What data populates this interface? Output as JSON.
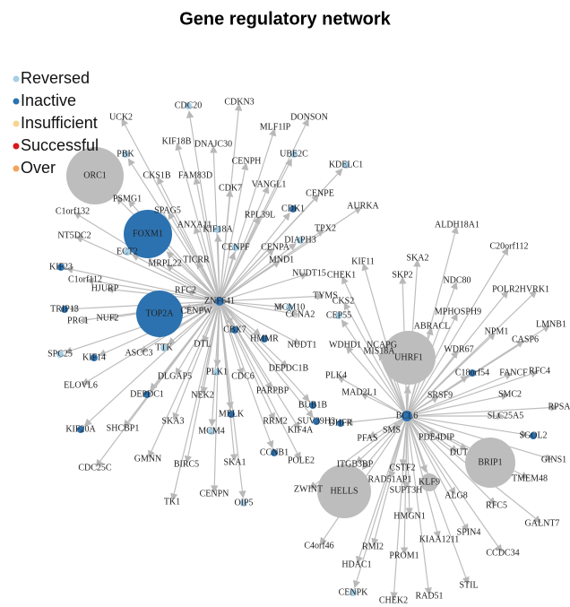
{
  "title": "Gene regulatory network",
  "legend": [
    {
      "label": "Reversed",
      "color": "#a6cfe6"
    },
    {
      "label": "Inactive",
      "color": "#2c72b0"
    },
    {
      "label": "Insufficient",
      "color": "#f7d58e"
    },
    {
      "label": "Successful",
      "color": "#d7191c"
    },
    {
      "label": "Over",
      "color": "#f4a35a"
    }
  ],
  "nodes": [
    {
      "label": "ZNF641",
      "status": "Inactive"
    },
    {
      "label": "BCL6",
      "status": "Inactive"
    },
    {
      "label": "ORC1",
      "from": "ZNF641"
    },
    {
      "label": "FOXM1",
      "from": "ZNF641",
      "status": "Inactive"
    },
    {
      "label": "TOP2A",
      "from": "ZNF641",
      "status": "Inactive"
    },
    {
      "label": "UCK2",
      "from": "ZNF641"
    },
    {
      "label": "CDC20",
      "from": "ZNF641",
      "status": "Reversed"
    },
    {
      "label": "CDKN3",
      "from": "ZNF641"
    },
    {
      "label": "MLF1IP",
      "from": "ZNF641"
    },
    {
      "label": "DONSON",
      "from": "ZNF641"
    },
    {
      "label": "KIF18B",
      "from": "ZNF641"
    },
    {
      "label": "DNAJC30",
      "from": "ZNF641"
    },
    {
      "label": "PBK",
      "from": "ZNF641",
      "status": "Reversed"
    },
    {
      "label": "CKS1B",
      "from": "ZNF641"
    },
    {
      "label": "FAM83D",
      "from": "ZNF641"
    },
    {
      "label": "CENPH",
      "from": "ZNF641"
    },
    {
      "label": "UBE2C",
      "from": "ZNF641",
      "status": "Reversed"
    },
    {
      "label": "KDELC1",
      "from": "ZNF641",
      "status": "Reversed"
    },
    {
      "label": "CDK7",
      "from": "ZNF641"
    },
    {
      "label": "VANGL1",
      "from": "ZNF641"
    },
    {
      "label": "PSMG1",
      "from": "ZNF641"
    },
    {
      "label": "C1orf132",
      "from": "ZNF641"
    },
    {
      "label": "SPAG5",
      "from": "ZNF641"
    },
    {
      "label": "ANXA11",
      "from": "ZNF641"
    },
    {
      "label": "KIF18A",
      "from": "ZNF641",
      "status": "Reversed"
    },
    {
      "label": "RPL39L",
      "from": "ZNF641"
    },
    {
      "label": "CDK1",
      "from": "ZNF641",
      "status": "Inactive"
    },
    {
      "label": "CENPE",
      "from": "ZNF641"
    },
    {
      "label": "AURKA",
      "from": "ZNF641"
    },
    {
      "label": "NT5DC2",
      "from": "ZNF641"
    },
    {
      "label": "DIAPH3",
      "from": "ZNF641",
      "status": "Reversed"
    },
    {
      "label": "TPX2",
      "from": "ZNF641"
    },
    {
      "label": "ECT2",
      "from": "ZNF641",
      "status": "Reversed"
    },
    {
      "label": "CENPF",
      "from": "ZNF641",
      "status": "Reversed"
    },
    {
      "label": "CENPA",
      "from": "ZNF641"
    },
    {
      "label": "MRPL22",
      "from": "ZNF641"
    },
    {
      "label": "TICRR",
      "from": "ZNF641"
    },
    {
      "label": "KIF23",
      "from": "ZNF641",
      "status": "Inactive"
    },
    {
      "label": "C1orf112",
      "from": "ZNF641"
    },
    {
      "label": "HJURP",
      "from": "ZNF641"
    },
    {
      "label": "MND1",
      "from": "ZNF641"
    },
    {
      "label": "NUDT15",
      "from": "ZNF641"
    },
    {
      "label": "RFC2",
      "from": "ZNF641"
    },
    {
      "label": "TRIP13",
      "from": "ZNF641",
      "status": "Inactive"
    },
    {
      "label": "PRC1",
      "from": "ZNF641"
    },
    {
      "label": "NUF2",
      "from": "ZNF641"
    },
    {
      "label": "CENPW",
      "from": "ZNF641"
    },
    {
      "label": "MCM10",
      "from": "ZNF641",
      "status": "Reversed"
    },
    {
      "label": "CCNA2",
      "from": "ZNF641"
    },
    {
      "label": "TYMS",
      "from": "ZNF641"
    },
    {
      "label": "SPC25",
      "from": "ZNF641",
      "status": "Reversed"
    },
    {
      "label": "KIF14",
      "from": "ZNF641",
      "status": "Inactive"
    },
    {
      "label": "ASCC3",
      "from": "ZNF641"
    },
    {
      "label": "TTK",
      "from": "ZNF641",
      "status": "Reversed"
    },
    {
      "label": "DTL",
      "from": "ZNF641"
    },
    {
      "label": "CBX7",
      "from": "ZNF641",
      "status": "Inactive"
    },
    {
      "label": "HMMR",
      "from": "ZNF641",
      "status": "Inactive"
    },
    {
      "label": "ELOVL6",
      "from": "ZNF641"
    },
    {
      "label": "DLGAP5",
      "from": "ZNF641"
    },
    {
      "label": "DEPDC1",
      "from": "ZNF641",
      "status": "Inactive"
    },
    {
      "label": "NUDT1",
      "from": "ZNF641"
    },
    {
      "label": "KIF20A",
      "from": "ZNF641",
      "status": "Inactive"
    },
    {
      "label": "NEK2",
      "from": "ZNF641"
    },
    {
      "label": "PLK1",
      "from": "ZNF641",
      "status": "Reversed"
    },
    {
      "label": "CDC6",
      "from": "ZNF641"
    },
    {
      "label": "PARPBP",
      "from": "ZNF641"
    },
    {
      "label": "DEPDC1B",
      "from": "ZNF641"
    },
    {
      "label": "SHCBP1",
      "from": "ZNF641"
    },
    {
      "label": "SKA3",
      "from": "ZNF641"
    },
    {
      "label": "MELK",
      "from": "ZNF641",
      "status": "Inactive"
    },
    {
      "label": "RRM2",
      "from": "ZNF641"
    },
    {
      "label": "CDC25C",
      "from": "ZNF641"
    },
    {
      "label": "GMNN",
      "from": "ZNF641"
    },
    {
      "label": "MCM4",
      "from": "ZNF641",
      "status": "Reversed"
    },
    {
      "label": "BIRC5",
      "from": "ZNF641"
    },
    {
      "label": "CCNB1",
      "from": "ZNF641",
      "status": "Inactive"
    },
    {
      "label": "SKA1",
      "from": "ZNF641"
    },
    {
      "label": "TK1",
      "from": "ZNF641"
    },
    {
      "label": "CENPN",
      "from": "ZNF641"
    },
    {
      "label": "OIP5",
      "from": "ZNF641",
      "status": "Reversed"
    },
    {
      "label": "POLE2",
      "from": "ZNF641"
    },
    {
      "label": "KIF4A",
      "from": "ZNF641"
    },
    {
      "label": "SUV39H2",
      "from": "ZNF641",
      "status": "Inactive"
    },
    {
      "label": "BUB1B",
      "from": "ZNF641",
      "status": "Inactive"
    },
    {
      "label": "UHRF1",
      "from": "BCL6"
    },
    {
      "label": "HELLS",
      "from": "BCL6"
    },
    {
      "label": "BRIP1",
      "from": "BCL6"
    },
    {
      "label": "ALDH18A1",
      "from": "BCL6"
    },
    {
      "label": "C20orf112",
      "from": "BCL6"
    },
    {
      "label": "SKA2",
      "from": "BCL6"
    },
    {
      "label": "KIF11",
      "from": "BCL6"
    },
    {
      "label": "CHEK1",
      "from": "BCL6"
    },
    {
      "label": "SKP2",
      "from": "BCL6"
    },
    {
      "label": "NDC80",
      "from": "BCL6"
    },
    {
      "label": "POLR2H",
      "from": "BCL6"
    },
    {
      "label": "VRK1",
      "from": "BCL6"
    },
    {
      "label": "CKS2",
      "from": "BCL6"
    },
    {
      "label": "CEP55",
      "from": "BCL6",
      "status": "Reversed"
    },
    {
      "label": "MPHOSPH9",
      "from": "BCL6"
    },
    {
      "label": "NPM1",
      "from": "BCL6"
    },
    {
      "label": "LMNB1",
      "from": "BCL6"
    },
    {
      "label": "ABRACL",
      "from": "BCL6"
    },
    {
      "label": "WDR67",
      "from": "BCL6"
    },
    {
      "label": "CASP6",
      "from": "BCL6"
    },
    {
      "label": "WDHD1",
      "from": "BCL6"
    },
    {
      "label": "NCAPG",
      "from": "BCL6"
    },
    {
      "label": "MIS18A",
      "from": "BCL6"
    },
    {
      "label": "C18orf54",
      "from": "BCL6",
      "status": "Inactive"
    },
    {
      "label": "FANCF",
      "from": "BCL6"
    },
    {
      "label": "RFC4",
      "from": "BCL6"
    },
    {
      "label": "PLK4",
      "from": "BCL6"
    },
    {
      "label": "MAD2L1",
      "from": "BCL6"
    },
    {
      "label": "SRSF9",
      "from": "BCL6"
    },
    {
      "label": "SMC2",
      "from": "BCL6"
    },
    {
      "label": "DHFR",
      "from": "BCL6",
      "status": "Inactive"
    },
    {
      "label": "SLC25A5",
      "from": "BCL6"
    },
    {
      "label": "RPSA",
      "from": "BCL6"
    },
    {
      "label": "SMS",
      "from": "BCL6"
    },
    {
      "label": "PFAS",
      "from": "BCL6"
    },
    {
      "label": "PDE4DIP",
      "from": "BCL6"
    },
    {
      "label": "DUT",
      "from": "BCL6"
    },
    {
      "label": "SGOL2",
      "from": "BCL6",
      "status": "Inactive"
    },
    {
      "label": "GINS1",
      "from": "BCL6"
    },
    {
      "label": "ITGB3BP",
      "from": "BCL6"
    },
    {
      "label": "CSTF2",
      "from": "BCL6"
    },
    {
      "label": "RAD51AP1",
      "from": "BCL6"
    },
    {
      "label": "KLF9",
      "from": "BCL6"
    },
    {
      "label": "TMEM48",
      "from": "BCL6"
    },
    {
      "label": "ZWINT",
      "from": "BCL6"
    },
    {
      "label": "SUPT3H",
      "from": "BCL6"
    },
    {
      "label": "ALG8",
      "from": "BCL6"
    },
    {
      "label": "RFC5",
      "from": "BCL6"
    },
    {
      "label": "HMGN1",
      "from": "BCL6"
    },
    {
      "label": "SPIN4",
      "from": "BCL6"
    },
    {
      "label": "GALNT7",
      "from": "BCL6"
    },
    {
      "label": "C4orf46",
      "from": "BCL6"
    },
    {
      "label": "RMI2",
      "from": "BCL6"
    },
    {
      "label": "KIAA1211",
      "from": "BCL6"
    },
    {
      "label": "CCDC34",
      "from": "BCL6"
    },
    {
      "label": "PROM1",
      "from": "BCL6"
    },
    {
      "label": "HDAC1",
      "from": "BCL6"
    },
    {
      "label": "STIL",
      "from": "BCL6"
    },
    {
      "label": "CENPK",
      "from": "BCL6",
      "status": "Reversed"
    },
    {
      "label": "RAD51",
      "from": "BCL6"
    },
    {
      "label": "CHEK2",
      "from": "BCL6"
    }
  ]
}
